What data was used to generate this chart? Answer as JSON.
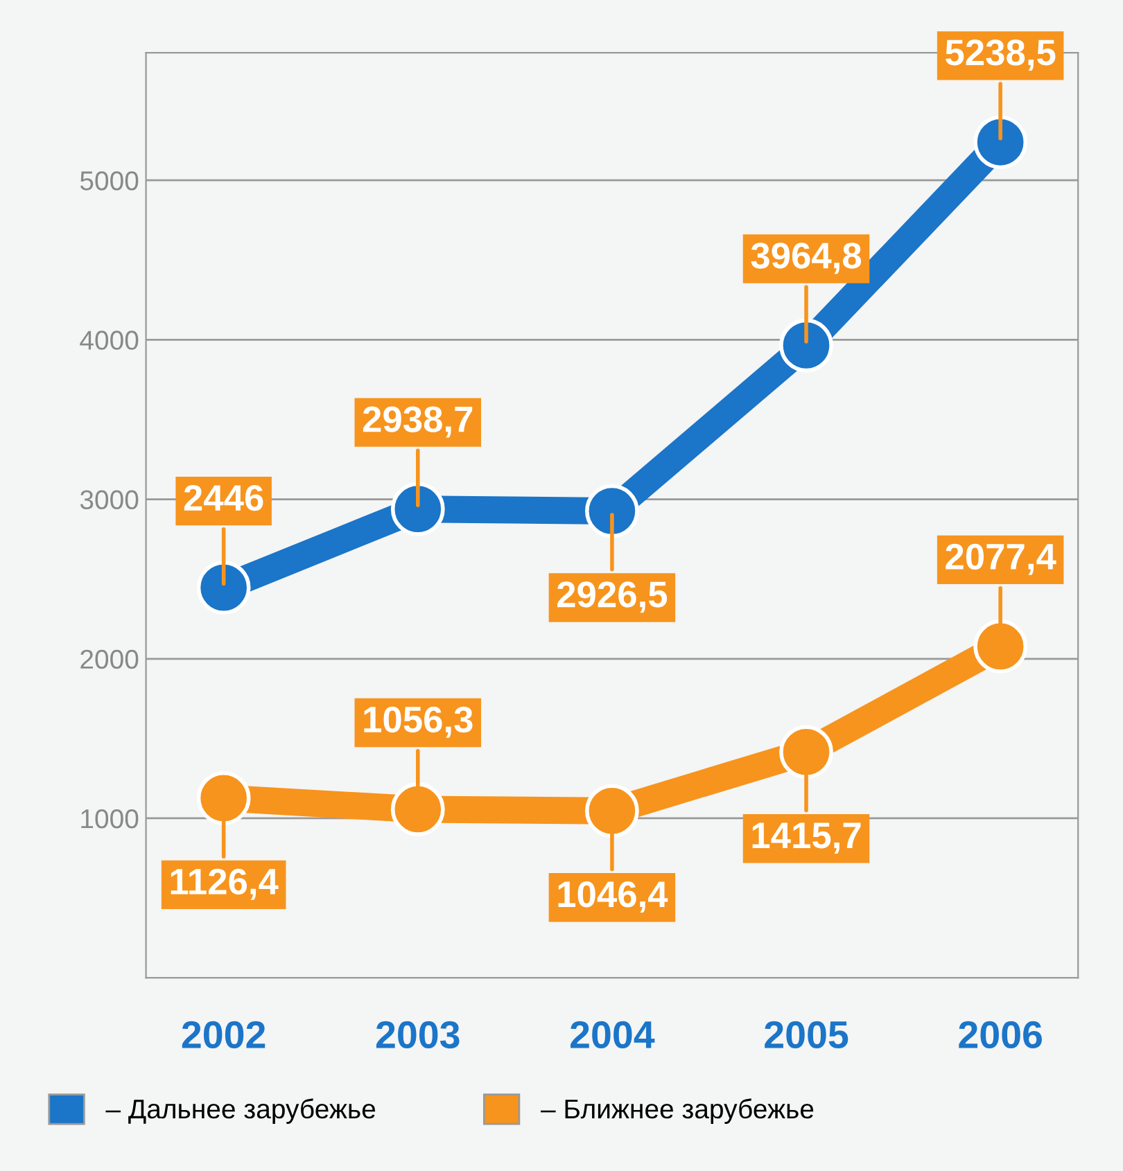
{
  "chart_data": {
    "type": "line",
    "categories": [
      "2002",
      "2003",
      "2004",
      "2005",
      "2006"
    ],
    "series": [
      {
        "name": "– Дальнее зарубежье",
        "color": "#1b75c8",
        "values": [
          2446,
          2938.7,
          2926.5,
          3964.8,
          5238.5
        ],
        "value_labels": [
          "2446",
          "2938,7",
          "2926,5",
          "3964,8",
          "5238,5"
        ]
      },
      {
        "name": "– Ближнее зарубежье",
        "color": "#f7941d",
        "values": [
          1126.4,
          1056.3,
          1046.4,
          1415.7,
          2077.4
        ],
        "value_labels": [
          "1126,4",
          "1056,3",
          "1046,4",
          "1415,7",
          "2077,4"
        ]
      }
    ],
    "ylim": [
      0,
      5800
    ],
    "yticks": [
      1000,
      2000,
      3000,
      4000,
      5000
    ],
    "grid": "y",
    "legend": "bottom",
    "marker": "circle",
    "line_style": "solid"
  }
}
